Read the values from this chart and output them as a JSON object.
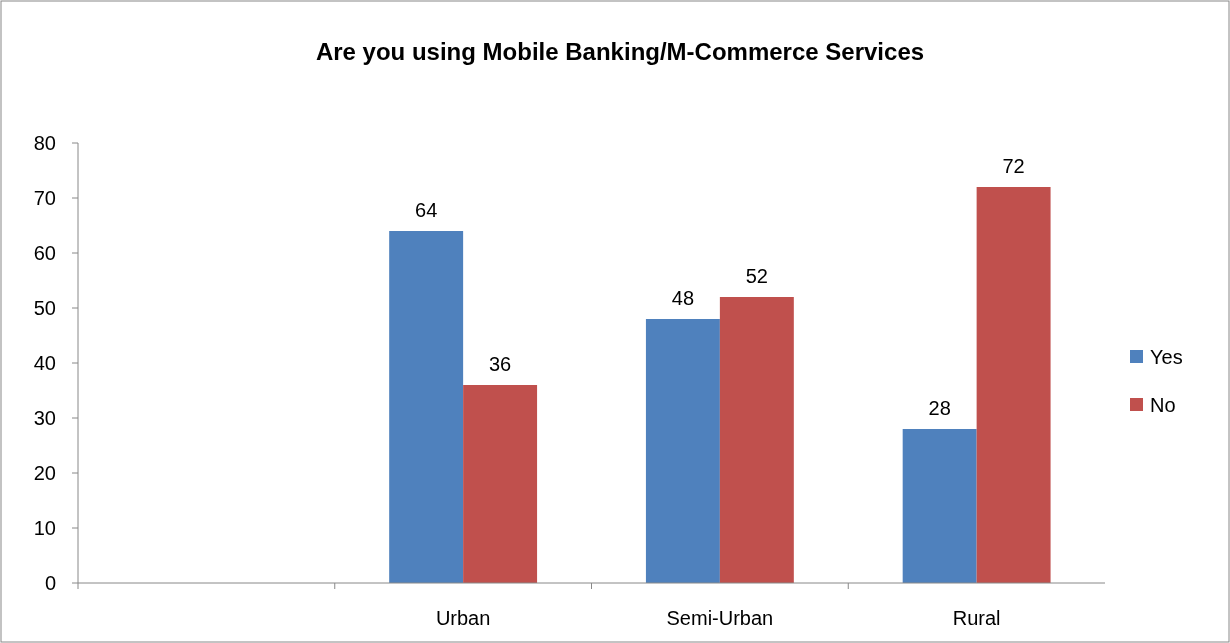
{
  "chart_data": {
    "type": "bar",
    "title": "Are you using Mobile Banking/M-Commerce Services",
    "categories": [
      null,
      "Urban",
      "Semi-Urban",
      "Rural"
    ],
    "series": [
      {
        "name": "Yes",
        "color": "#4f81bd",
        "values": [
          null,
          64,
          48,
          28
        ]
      },
      {
        "name": "No",
        "color": "#c0504d",
        "values": [
          null,
          36,
          52,
          72
        ]
      }
    ],
    "ylim": [
      0,
      80
    ],
    "yticks": [
      0,
      10,
      20,
      30,
      40,
      50,
      60,
      70,
      80
    ],
    "grid": false,
    "legend": "right",
    "data_labels": true
  }
}
